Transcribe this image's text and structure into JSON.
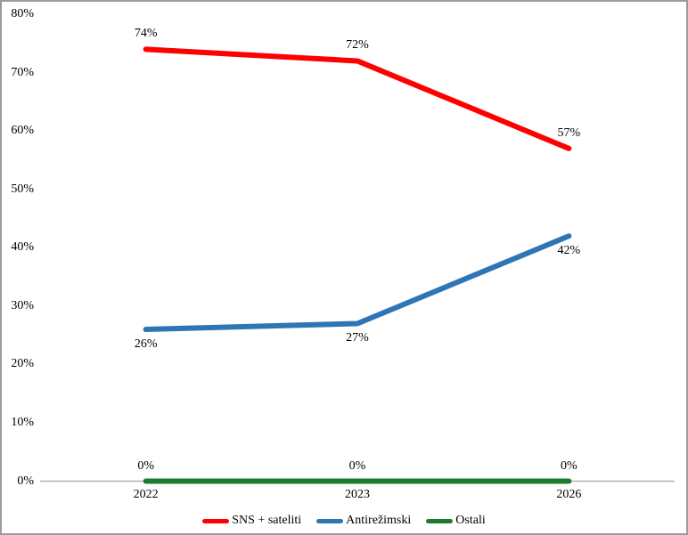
{
  "chart_data": {
    "type": "line",
    "categories": [
      "2022",
      "2023",
      "2026"
    ],
    "series": [
      {
        "name": "SNS + sateliti",
        "values": [
          74,
          72,
          57
        ],
        "color": "#FF0000",
        "label_position": "above"
      },
      {
        "name": "Antirežimski",
        "values": [
          26,
          27,
          42
        ],
        "color": "#2E75B6",
        "label_position": "below"
      },
      {
        "name": "Ostali",
        "values": [
          0,
          0,
          0
        ],
        "color": "#1E7A30",
        "label_position": "above"
      }
    ],
    "ylim": [
      0,
      80
    ],
    "ytick_step": 10,
    "tick_suffix": "%",
    "data_label_suffix": "%",
    "grid": false,
    "legend_position": "bottom"
  },
  "colors": {
    "axis_line": "#A6A6A6",
    "text": "#000000",
    "border": "#9B9B9B",
    "background": "#FFFFFF"
  }
}
